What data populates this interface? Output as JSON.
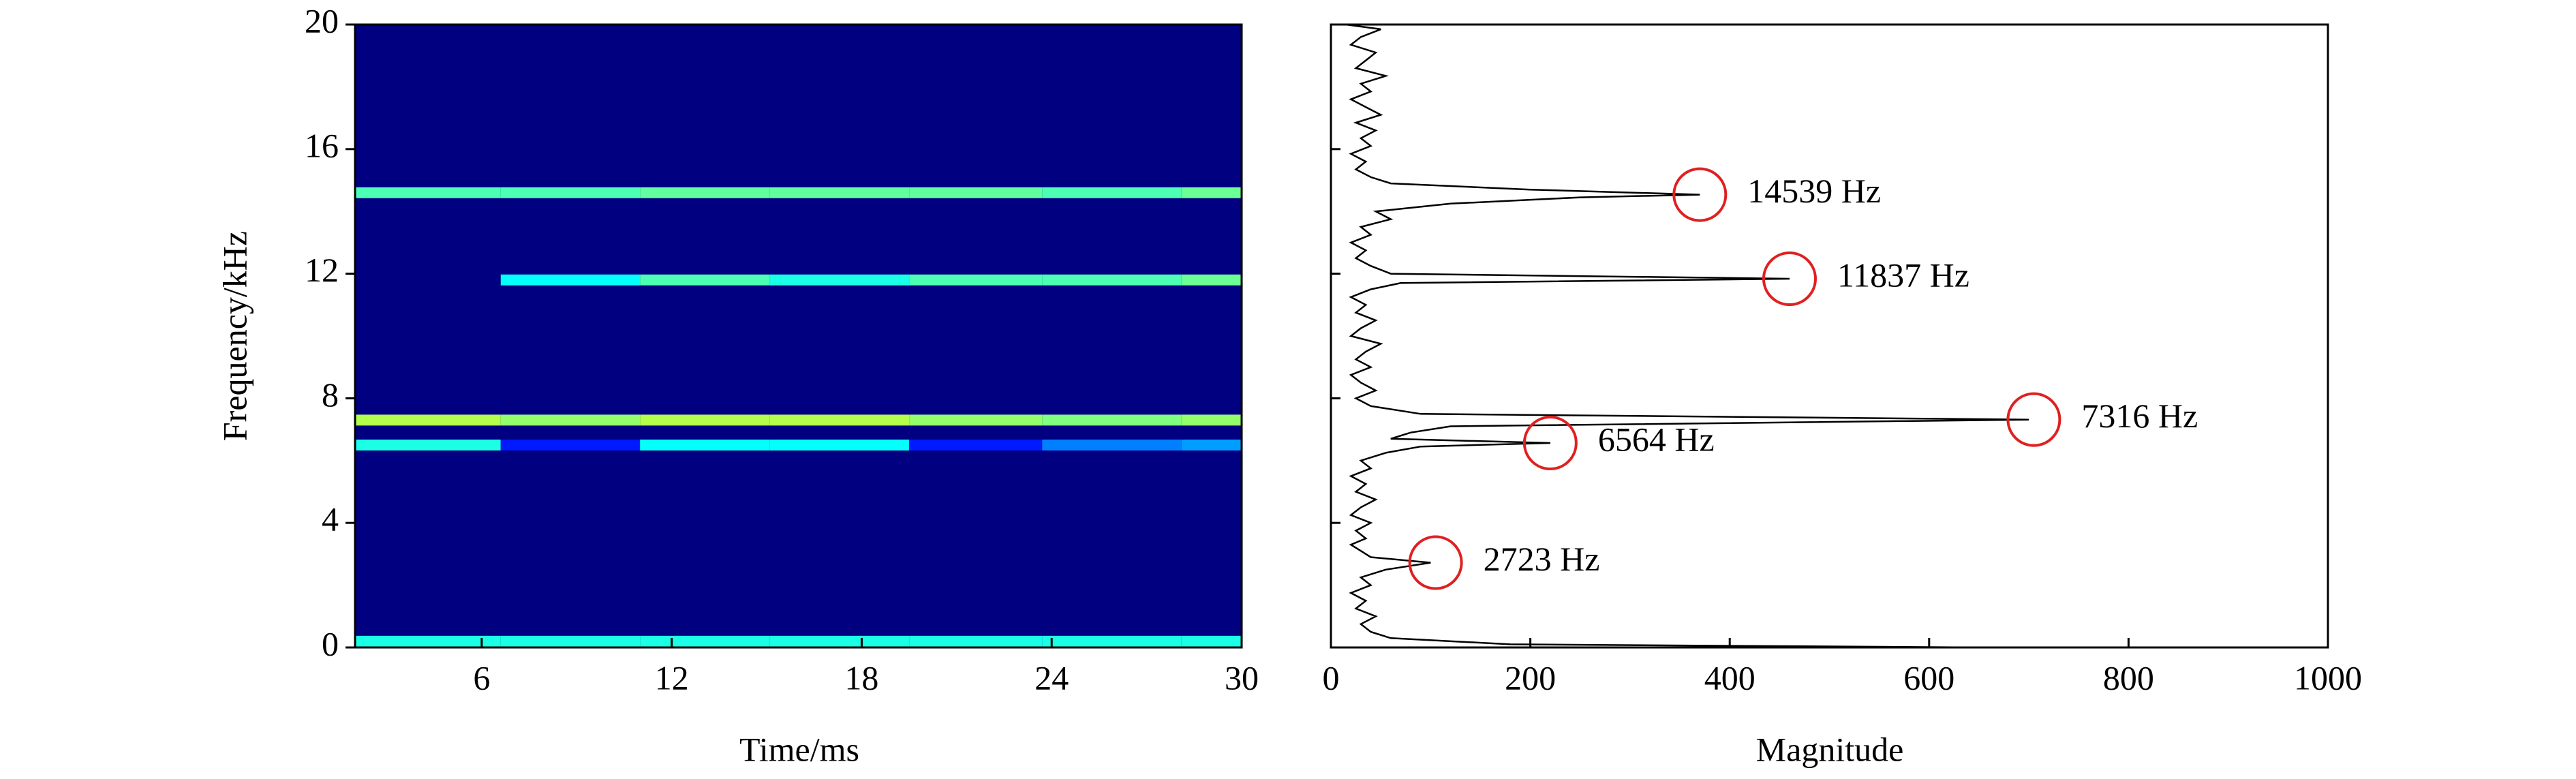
{
  "chart_data": [
    {
      "type": "heatmap",
      "xlabel": "Time/ms",
      "ylabel": "Frequency/kHz",
      "colormap": "jet",
      "xlim": [
        2,
        30
      ],
      "xticks": [
        6,
        12,
        18,
        24,
        30
      ],
      "ylim": [
        0,
        20
      ],
      "yticks": [
        0,
        4,
        8,
        12,
        16,
        20
      ],
      "x": [
        2,
        6.6,
        11,
        15.1,
        19.5,
        23.7,
        28.1,
        30
      ],
      "tracks": [
        {
          "frequency": 14.6,
          "values": [
            0.45,
            0.45,
            0.47,
            0.47,
            0.47,
            0.45,
            0.48
          ]
        },
        {
          "frequency": 11.8,
          "values": [
            0,
            0.38,
            0.45,
            0.4,
            0.45,
            0.45,
            0.48
          ]
        },
        {
          "frequency": 7.3,
          "values": [
            0.55,
            0.52,
            0.55,
            0.55,
            0.52,
            0.5,
            0.52
          ]
        },
        {
          "frequency": 6.5,
          "values": [
            0.4,
            0.15,
            0.38,
            0.38,
            0.15,
            0.25,
            0.28
          ]
        },
        {
          "frequency": 0.2,
          "values": [
            0.4,
            0.4,
            0.4,
            0.4,
            0.4,
            0.4,
            0.4
          ]
        }
      ]
    },
    {
      "type": "line",
      "orientation": "horizontal",
      "xlabel": "Magnitude",
      "color": "#000000",
      "xlim": [
        0,
        1000
      ],
      "xticks": [
        0,
        200,
        400,
        600,
        800,
        1000
      ],
      "ylim": [
        0,
        20
      ],
      "yticks": [
        0,
        4,
        8,
        12,
        16,
        20
      ],
      "y": [
        0.0,
        0.1,
        0.3,
        0.5,
        0.75,
        1.0,
        1.25,
        1.5,
        1.75,
        2.0,
        2.25,
        2.5,
        2.723,
        2.9,
        3.1,
        3.3,
        3.5,
        3.75,
        4.0,
        4.25,
        4.5,
        4.75,
        5.0,
        5.25,
        5.5,
        5.75,
        6.0,
        6.25,
        6.45,
        6.564,
        6.7,
        6.9,
        7.1,
        7.316,
        7.5,
        7.75,
        8.0,
        8.25,
        8.5,
        8.75,
        9.0,
        9.25,
        9.5,
        9.75,
        10.0,
        10.25,
        10.5,
        10.75,
        11.0,
        11.25,
        11.5,
        11.7,
        11.837,
        12.0,
        12.25,
        12.5,
        12.75,
        13.0,
        13.25,
        13.5,
        13.75,
        14.0,
        14.25,
        14.45,
        14.539,
        14.7,
        14.9,
        15.1,
        15.35,
        15.6,
        15.85,
        16.1,
        16.35,
        16.6,
        16.85,
        17.1,
        17.35,
        17.6,
        17.85,
        18.1,
        18.35,
        18.6,
        18.85,
        19.1,
        19.35,
        19.6,
        19.85,
        20.0
      ],
      "values": [
        650,
        180,
        60,
        40,
        30,
        45,
        25,
        35,
        20,
        40,
        30,
        55,
        100,
        40,
        30,
        20,
        35,
        25,
        40,
        20,
        30,
        45,
        25,
        35,
        20,
        40,
        30,
        55,
        90,
        220,
        60,
        80,
        120,
        700,
        90,
        40,
        25,
        45,
        30,
        20,
        40,
        25,
        35,
        50,
        20,
        30,
        45,
        25,
        35,
        20,
        40,
        70,
        460,
        60,
        40,
        25,
        35,
        20,
        40,
        30,
        60,
        45,
        120,
        250,
        370,
        200,
        60,
        40,
        25,
        35,
        20,
        40,
        30,
        45,
        25,
        50,
        35,
        20,
        40,
        30,
        55,
        25,
        35,
        45,
        20,
        30,
        50,
        15
      ],
      "annotation_color": "#e02020",
      "annotations": [
        {
          "text": "14539 Hz",
          "x": 370,
          "y": 14.539
        },
        {
          "text": "11837 Hz",
          "x": 460,
          "y": 11.837
        },
        {
          "text": "7316 Hz",
          "x": 705,
          "y": 7.316
        },
        {
          "text": "6564 Hz",
          "x": 220,
          "y": 6.564
        },
        {
          "text": "2723 Hz",
          "x": 105,
          "y": 2.723
        }
      ]
    }
  ]
}
